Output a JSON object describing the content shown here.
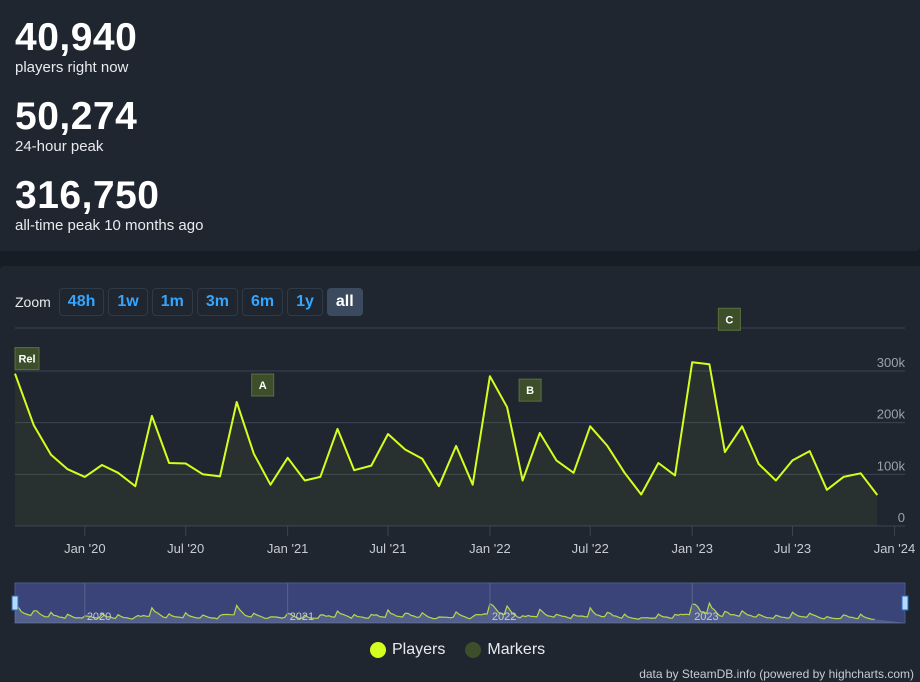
{
  "stats": [
    {
      "value": "40,940",
      "label": "players right now"
    },
    {
      "value": "50,274",
      "label": "24-hour peak"
    },
    {
      "value": "316,750",
      "label": "all-time peak 10 months ago"
    }
  ],
  "zoom": {
    "label": "Zoom",
    "buttons": [
      "48h",
      "1w",
      "1m",
      "3m",
      "6m",
      "1y",
      "all"
    ],
    "active": "all"
  },
  "legend": [
    {
      "label": "Players",
      "color": "#d4ff1e"
    },
    {
      "label": "Markers",
      "color": "#3d4f2a"
    }
  ],
  "credits": "data by SteamDB.info (powered by highcharts.com)",
  "colors": {
    "line": "#d4ff1e",
    "marker_bg": "#3d4f2a",
    "grid": "#3a4452",
    "navigator_bg": "#3a4478"
  },
  "chart_data": {
    "type": "line",
    "x_type": "datetime",
    "x_ticks": [
      "Jan '20",
      "Jul '20",
      "Jan '21",
      "Jul '21",
      "Jan '22",
      "Jul '22",
      "Jan '23",
      "Jul '23",
      "Jan '24"
    ],
    "y_ticks": [
      "0",
      "100k",
      "200k",
      "300k"
    ],
    "ylim": [
      0,
      300000
    ],
    "series": [
      {
        "name": "Players",
        "points": [
          [
            "2019-08-28",
            295000
          ],
          [
            "2019-10-01",
            195000
          ],
          [
            "2019-11-01",
            138000
          ],
          [
            "2019-12-01",
            110000
          ],
          [
            "2020-01-01",
            95000
          ],
          [
            "2020-02-01",
            118000
          ],
          [
            "2020-03-01",
            103000
          ],
          [
            "2020-04-01",
            77000
          ],
          [
            "2020-05-01",
            213000
          ],
          [
            "2020-06-01",
            122000
          ],
          [
            "2020-07-01",
            121000
          ],
          [
            "2020-08-01",
            100000
          ],
          [
            "2020-09-01",
            96000
          ],
          [
            "2020-10-01",
            240000
          ],
          [
            "2020-11-01",
            140000
          ],
          [
            "2020-12-01",
            80000
          ],
          [
            "2021-01-01",
            132000
          ],
          [
            "2021-02-01",
            88000
          ],
          [
            "2021-03-01",
            95000
          ],
          [
            "2021-04-01",
            188000
          ],
          [
            "2021-05-01",
            108000
          ],
          [
            "2021-06-01",
            117000
          ],
          [
            "2021-07-01",
            178000
          ],
          [
            "2021-08-01",
            148000
          ],
          [
            "2021-09-01",
            130000
          ],
          [
            "2021-10-01",
            77000
          ],
          [
            "2021-11-01",
            155000
          ],
          [
            "2021-12-01",
            80000
          ],
          [
            "2022-01-01",
            290000
          ],
          [
            "2022-02-01",
            230000
          ],
          [
            "2022-03-01",
            88000
          ],
          [
            "2022-04-01",
            180000
          ],
          [
            "2022-05-01",
            127000
          ],
          [
            "2022-06-01",
            103000
          ],
          [
            "2022-07-01",
            193000
          ],
          [
            "2022-08-01",
            155000
          ],
          [
            "2022-09-01",
            103000
          ],
          [
            "2022-10-01",
            61000
          ],
          [
            "2022-11-01",
            122000
          ],
          [
            "2022-12-01",
            98000
          ],
          [
            "2023-01-01",
            316750
          ],
          [
            "2023-02-01",
            313000
          ],
          [
            "2023-03-01",
            143000
          ],
          [
            "2023-04-01",
            193000
          ],
          [
            "2023-05-01",
            120000
          ],
          [
            "2023-06-01",
            88000
          ],
          [
            "2023-07-01",
            127000
          ],
          [
            "2023-08-01",
            145000
          ],
          [
            "2023-09-01",
            70000
          ],
          [
            "2023-10-01",
            95000
          ],
          [
            "2023-11-01",
            102000
          ],
          [
            "2023-12-01",
            60000
          ]
        ]
      },
      {
        "name": "Markers",
        "points": [
          {
            "date": "2019-08-28",
            "label": "Rel"
          },
          {
            "date": "2020-10-01",
            "label": "A"
          },
          {
            "date": "2022-02-01",
            "label": "B"
          },
          {
            "date": "2023-02-01",
            "label": "C"
          }
        ]
      }
    ],
    "navigator_ticks": [
      "2020",
      "2021",
      "2022",
      "2023"
    ],
    "legend_position": "bottom-center",
    "grid": true
  }
}
